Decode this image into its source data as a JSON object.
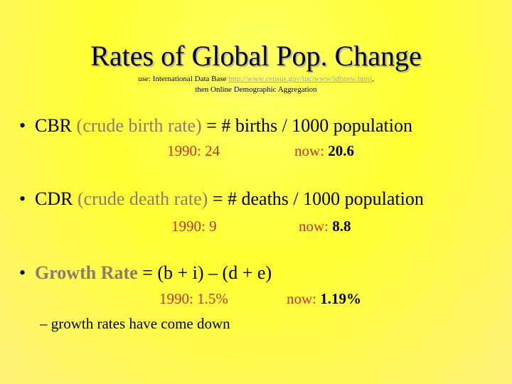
{
  "title": "Rates of Global Pop. Change",
  "source": {
    "prefix": "use: International Data Base ",
    "link": "http://www.census.gov/ipc/www/idbnew.html",
    "suffix": ",",
    "line2": "then Online Demographic Aggregation"
  },
  "bullets": [
    {
      "symbol": "•",
      "term": "CBR",
      "paren_open": " (",
      "expansion": "crude birth rate",
      "paren_close": ")",
      "formula": " = # births / 1000 population",
      "then_label": "1990: 24",
      "now_label": "now: ",
      "now_value": "20.6"
    },
    {
      "symbol": "•",
      "term": "CDR",
      "paren_open": " (",
      "expansion": "crude death rate",
      "paren_close": ")",
      "formula": " = # deaths / 1000 population",
      "then_label": "1990: 9",
      "now_label": "now: ",
      "now_value": "8.8"
    },
    {
      "symbol": "•",
      "term": "Growth Rate",
      "formula": " = (b + i) – (d + e)",
      "then_label": "1990: 1.5%",
      "now_label": "now: ",
      "now_value": "1.19%"
    }
  ],
  "sub_bullet": "– growth rates have come down"
}
